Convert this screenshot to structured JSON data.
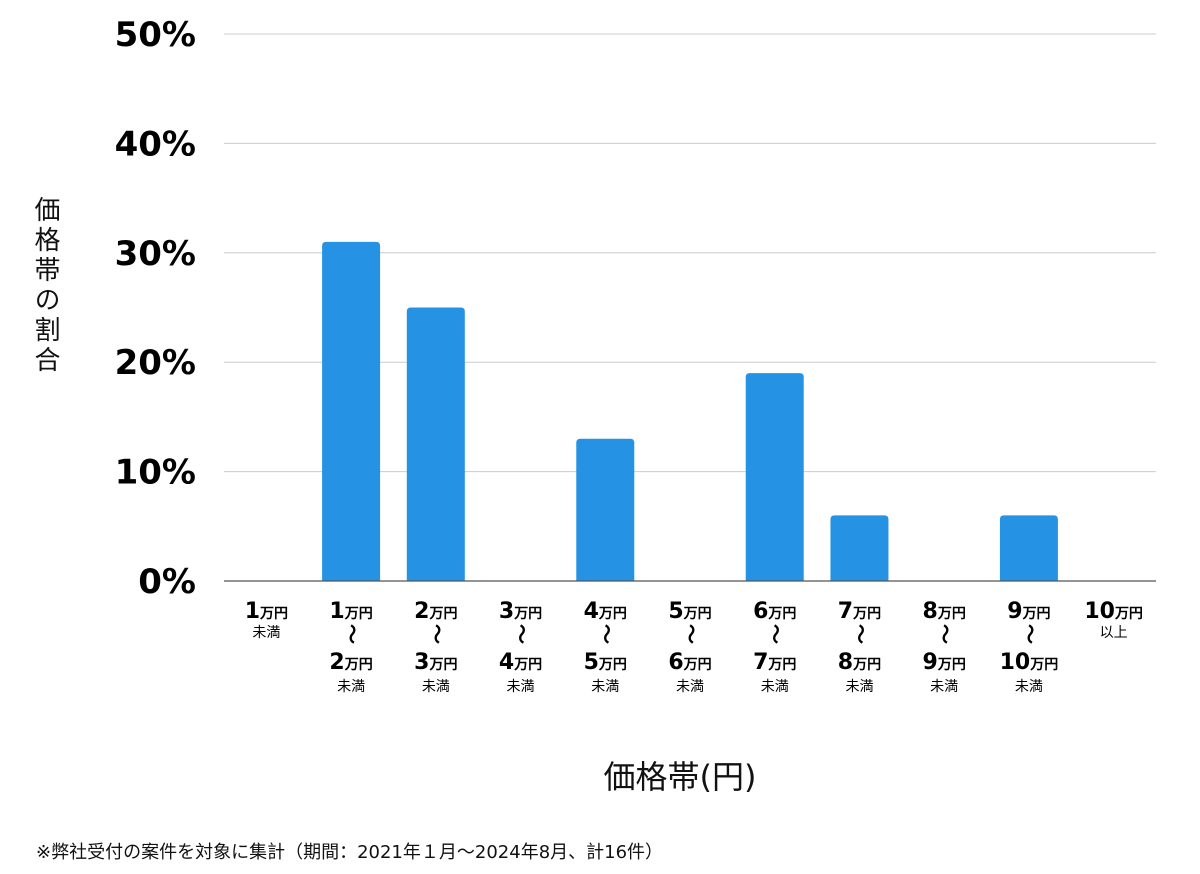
{
  "chart_data": {
    "type": "bar",
    "title": "",
    "xlabel": "価格帯(円)",
    "ylabel": "価格帯の割合",
    "ylim": [
      0,
      50
    ],
    "yticks": [
      "0%",
      "10%",
      "20%",
      "30%",
      "40%",
      "50%"
    ],
    "grid": true,
    "legend": "none",
    "bar_color": "#2592e4",
    "categories": [
      "1万円未満",
      "1万円〜2万円未満",
      "2万円〜3万円未満",
      "3万円〜4万円未満",
      "4万円〜5万円未満",
      "5万円〜6万円未満",
      "6万円〜7万円未満",
      "7万円〜8万円未満",
      "8万円〜9万円未満",
      "9万円〜10万円未満",
      "10万円以上"
    ],
    "category_labels": [
      {
        "from_num": "1",
        "from_unit": "万円",
        "to_num": "",
        "to_unit": "",
        "suffix": "未満"
      },
      {
        "from_num": "1",
        "from_unit": "万円",
        "to_num": "2",
        "to_unit": "万円",
        "suffix": "未満"
      },
      {
        "from_num": "2",
        "from_unit": "万円",
        "to_num": "3",
        "to_unit": "万円",
        "suffix": "未満"
      },
      {
        "from_num": "3",
        "from_unit": "万円",
        "to_num": "4",
        "to_unit": "万円",
        "suffix": "未満"
      },
      {
        "from_num": "4",
        "from_unit": "万円",
        "to_num": "5",
        "to_unit": "万円",
        "suffix": "未満"
      },
      {
        "from_num": "5",
        "from_unit": "万円",
        "to_num": "6",
        "to_unit": "万円",
        "suffix": "未満"
      },
      {
        "from_num": "6",
        "from_unit": "万円",
        "to_num": "7",
        "to_unit": "万円",
        "suffix": "未満"
      },
      {
        "from_num": "7",
        "from_unit": "万円",
        "to_num": "8",
        "to_unit": "万円",
        "suffix": "未満"
      },
      {
        "from_num": "8",
        "from_unit": "万円",
        "to_num": "9",
        "to_unit": "万円",
        "suffix": "未満"
      },
      {
        "from_num": "9",
        "from_unit": "万円",
        "to_num": "10",
        "to_unit": "万円",
        "suffix": "未満"
      },
      {
        "from_num": "10",
        "from_unit": "万円",
        "to_num": "",
        "to_unit": "",
        "suffix": "以上"
      }
    ],
    "range_mark": "〜",
    "values": [
      0,
      31,
      25,
      0,
      13,
      0,
      19,
      6,
      0,
      6,
      0
    ]
  },
  "footnote": "※弊社受付の案件を対象に集計（期間：2021年１月〜2024年8月、計16件）"
}
